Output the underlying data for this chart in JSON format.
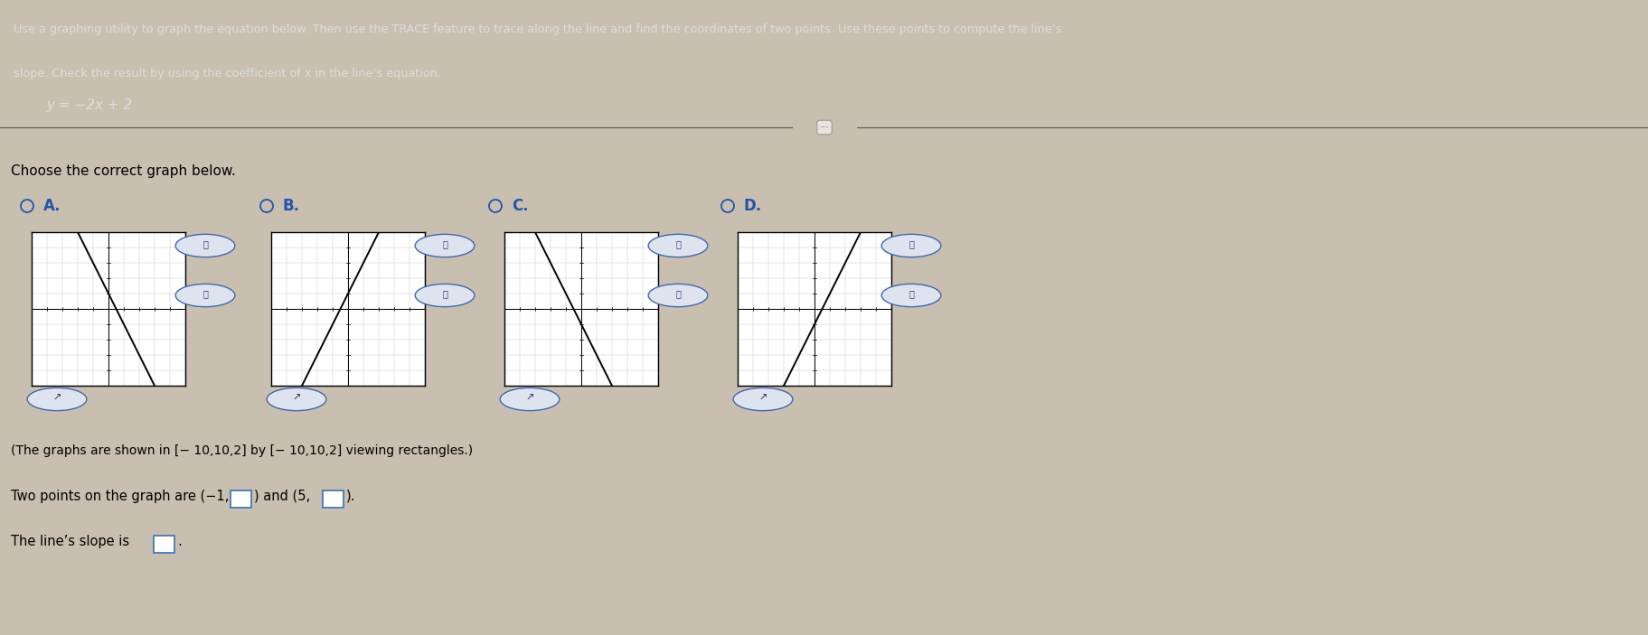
{
  "title_line1": "Use a graphing utility to graph the equation below. Then use the TRACE feature to trace along the line and find the coordinates of two points. Use these points to compute the line’s",
  "title_line2": "slope. Check the result by using the coefficient of x in the line’s equation.",
  "equation": "y = −2x + 2",
  "choose_text": "Choose the correct graph below.",
  "viewing_rect_text": "(The graphs are shown in [− 10,10,2] by [− 10,10,2] viewing rectangles.)",
  "header_bg": "#2a2a2a",
  "content_bg": "#c8bfb0",
  "graph_bg": "#ffffff",
  "graph_border": "#000000",
  "line_color": "#000000",
  "axis_color": "#000000",
  "grid_color": "#cccccc",
  "radio_color": "#2255aa",
  "label_color": "#2255aa",
  "text_color": "#000000",
  "header_text_color": "#dddddd",
  "box_edge_color": "#4477bb",
  "sep_line_color": "#555555",
  "sep_btn_bg": "#e8e4de",
  "sep_btn_border": "#999999",
  "graphs": [
    {
      "label": "A",
      "slope": -2,
      "intercept": 2
    },
    {
      "label": "B",
      "slope": 2,
      "intercept": 2
    },
    {
      "label": "C",
      "slope": -2,
      "intercept": -2
    },
    {
      "label": "D",
      "slope": 2,
      "intercept": -2
    }
  ],
  "figsize": [
    18.24,
    7.03
  ],
  "dpi": 100
}
